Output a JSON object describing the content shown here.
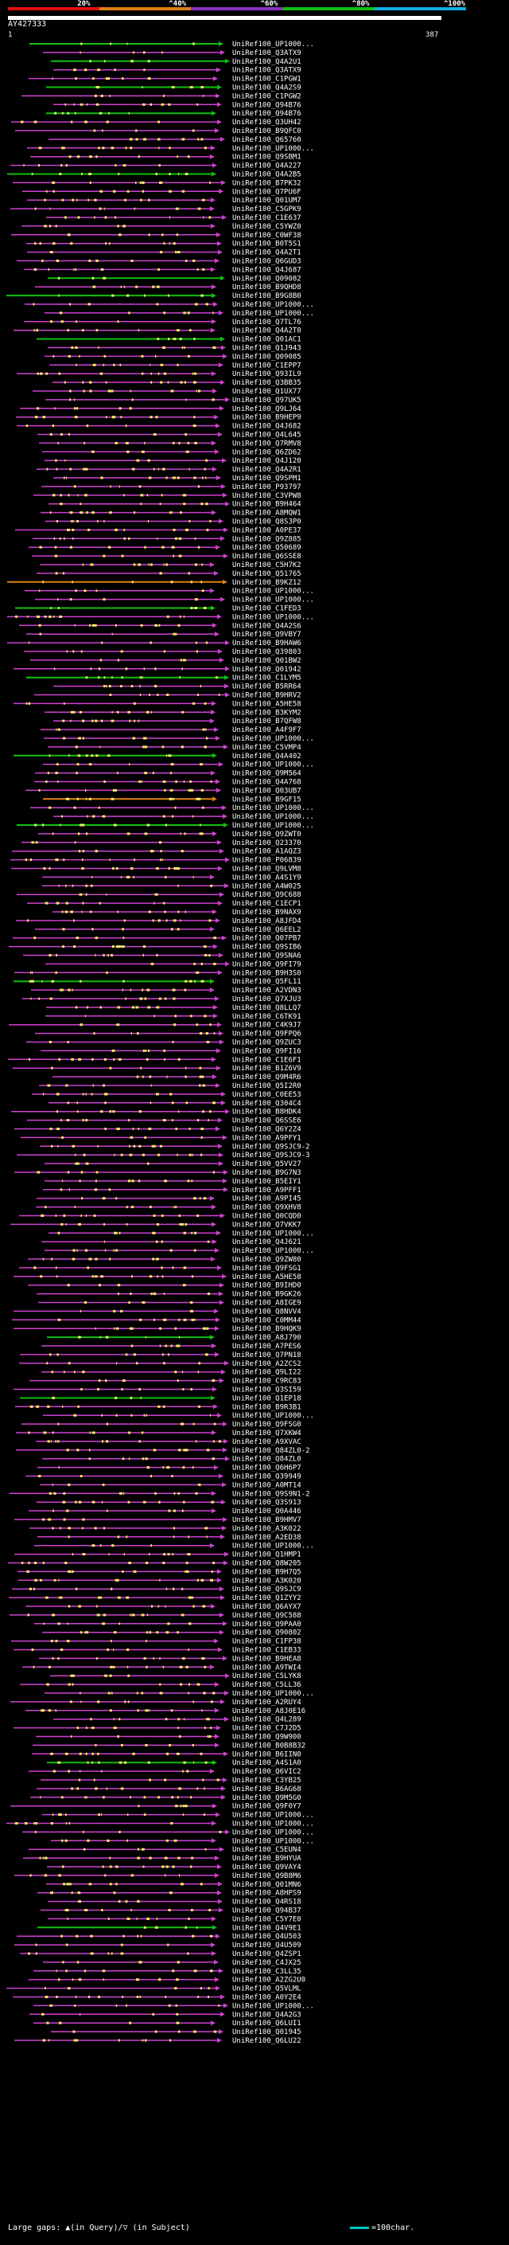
{
  "scale": {
    "labels": [
      "20%",
      "^40%",
      "^60%",
      "^80%",
      "^100%"
    ],
    "colors": [
      "#e01010",
      "#e08010",
      "#8830c0",
      "#10c010",
      "#10b0e0"
    ]
  },
  "query": {
    "id": "AY427333",
    "range_start": "1",
    "range_end": "387"
  },
  "colors": {
    "hit_magenta": "#d040d0",
    "hit_green": "#10c010",
    "hit_orange": "#e08010",
    "hsp_yellow": "#f0f060",
    "background": "#000000"
  },
  "hits": [
    {
      "label": "UniRef100_UP1000...",
      "color": "green"
    },
    {
      "label": "UniRef100_Q3ATX9",
      "color": "magenta"
    },
    {
      "label": "UniRef100_Q4A2U1",
      "color": "green"
    },
    {
      "label": "UniRef100_Q3ATX9",
      "color": "magenta"
    },
    {
      "label": "UniRef100_C1PGW1",
      "color": "magenta"
    },
    {
      "label": "UniRef100_Q4A2S9",
      "color": "green"
    },
    {
      "label": "UniRef100_C1PGW2",
      "color": "magenta"
    },
    {
      "label": "UniRef100_Q94B76",
      "color": "magenta"
    },
    {
      "label": "UniRef100_Q94B76",
      "color": "green"
    },
    {
      "label": "UniRef100_Q3UH42",
      "color": "magenta"
    },
    {
      "label": "UniRef100_B9QFC0",
      "color": "magenta"
    },
    {
      "label": "UniRef100_Q65760",
      "color": "magenta"
    },
    {
      "label": "UniRef100_UP1000...",
      "color": "magenta"
    },
    {
      "label": "UniRef100_Q9SBM1",
      "color": "magenta"
    },
    {
      "label": "UniRef100_Q4A227",
      "color": "magenta"
    },
    {
      "label": "UniRef100_Q4A2B5",
      "color": "green"
    },
    {
      "label": "UniRef100_B7PK32",
      "color": "magenta"
    },
    {
      "label": "UniRef100_Q7PU6F",
      "color": "magenta"
    },
    {
      "label": "UniRef100_Q01UM7",
      "color": "magenta"
    },
    {
      "label": "UniRef100_C5GPK9",
      "color": "magenta"
    },
    {
      "label": "UniRef100_C1E637",
      "color": "magenta"
    },
    {
      "label": "UniRef100_C5YWZ0",
      "color": "magenta"
    },
    {
      "label": "UniRef100_C0WF38",
      "color": "magenta"
    },
    {
      "label": "UniRef100_B0T5S1",
      "color": "magenta"
    },
    {
      "label": "UniRef100_Q4A2T1",
      "color": "magenta"
    },
    {
      "label": "UniRef100_Q6GUD3",
      "color": "magenta"
    },
    {
      "label": "UniRef100_Q4J687",
      "color": "magenta"
    },
    {
      "label": "UniRef100_Q09082",
      "color": "green"
    },
    {
      "label": "UniRef100_B9QHD8",
      "color": "magenta"
    },
    {
      "label": "UniRef100_B9G8B0",
      "color": "green"
    },
    {
      "label": "UniRef100_UP1000...",
      "color": "magenta"
    },
    {
      "label": "UniRef100_UP1000...",
      "color": "magenta"
    },
    {
      "label": "UniRef100_Q7TL76",
      "color": "magenta"
    },
    {
      "label": "UniRef100_Q4A2T0",
      "color": "magenta"
    },
    {
      "label": "UniRef100_Q01AC1",
      "color": "green"
    },
    {
      "label": "UniRef100_Q1J943",
      "color": "magenta"
    },
    {
      "label": "UniRef100_Q09085",
      "color": "magenta"
    },
    {
      "label": "UniRef100_C1EPP7",
      "color": "magenta"
    },
    {
      "label": "UniRef100_Q93IL9",
      "color": "magenta"
    },
    {
      "label": "UniRef100_Q3BB35",
      "color": "magenta"
    },
    {
      "label": "UniRef100_Q1UX77",
      "color": "magenta"
    },
    {
      "label": "UniRef100_Q97UK5",
      "color": "magenta"
    },
    {
      "label": "UniRef100_Q9LJ64",
      "color": "magenta"
    },
    {
      "label": "UniRef100_B9HEP9",
      "color": "magenta"
    },
    {
      "label": "UniRef100_Q4J682",
      "color": "magenta"
    },
    {
      "label": "UniRef100_Q4L645",
      "color": "magenta"
    },
    {
      "label": "UniRef100_Q7RMV8",
      "color": "magenta"
    },
    {
      "label": "UniRef100_Q6ZD62",
      "color": "magenta"
    },
    {
      "label": "UniRef100_Q4J120",
      "color": "magenta"
    },
    {
      "label": "UniRef100_Q4A2R1",
      "color": "magenta"
    },
    {
      "label": "UniRef100_Q9SPM1",
      "color": "magenta"
    },
    {
      "label": "UniRef100_P93797",
      "color": "magenta"
    },
    {
      "label": "UniRef100_C3VPW8",
      "color": "magenta"
    },
    {
      "label": "UniRef100_B9H464",
      "color": "magenta"
    },
    {
      "label": "UniRef100_A8MQW1",
      "color": "magenta"
    },
    {
      "label": "UniRef100_Q8S3P0",
      "color": "magenta"
    },
    {
      "label": "UniRef100_A0PE37",
      "color": "magenta"
    },
    {
      "label": "UniRef100_Q9Z885",
      "color": "magenta"
    },
    {
      "label": "UniRef100_Q50689",
      "color": "magenta"
    },
    {
      "label": "UniRef100_Q6SSE8",
      "color": "magenta"
    },
    {
      "label": "UniRef100_C5H7K2",
      "color": "magenta"
    },
    {
      "label": "UniRef100_Q51765",
      "color": "magenta"
    },
    {
      "label": "UniRef100_B9KZ12",
      "color": "orange"
    },
    {
      "label": "UniRef100_UP1000...",
      "color": "magenta"
    },
    {
      "label": "UniRef100_UP1000...",
      "color": "magenta"
    },
    {
      "label": "UniRef100_C1FED3",
      "color": "green"
    },
    {
      "label": "UniRef100_UP1000...",
      "color": "magenta"
    },
    {
      "label": "UniRef100_Q4A2S6",
      "color": "magenta"
    },
    {
      "label": "UniRef100_Q9VBY7",
      "color": "magenta"
    },
    {
      "label": "UniRef100_B9HAW6",
      "color": "magenta"
    },
    {
      "label": "UniRef100_Q39803",
      "color": "magenta"
    },
    {
      "label": "UniRef100_Q01BW2",
      "color": "magenta"
    },
    {
      "label": "UniRef100_Q01942",
      "color": "magenta"
    },
    {
      "label": "UniRef100_C1LYM5",
      "color": "green"
    },
    {
      "label": "UniRef100_B5RR64",
      "color": "magenta"
    },
    {
      "label": "UniRef100_B9HRV2",
      "color": "magenta"
    },
    {
      "label": "UniRef100_A5HE58",
      "color": "magenta"
    },
    {
      "label": "UniRef100_B3KYM2",
      "color": "magenta"
    },
    {
      "label": "UniRef100_B7QFW8",
      "color": "magenta"
    },
    {
      "label": "UniRef100_A4F9F7",
      "color": "magenta"
    },
    {
      "label": "UniRef100_UP1000...",
      "color": "magenta"
    },
    {
      "label": "UniRef100_C5VMP4",
      "color": "magenta"
    },
    {
      "label": "UniRef100_Q4A402",
      "color": "green"
    },
    {
      "label": "UniRef100_UP1000...",
      "color": "magenta"
    },
    {
      "label": "UniRef100_Q9M564",
      "color": "magenta"
    },
    {
      "label": "UniRef100_Q4A768",
      "color": "magenta"
    },
    {
      "label": "UniRef100_Q03UB7",
      "color": "magenta"
    },
    {
      "label": "UniRef100_B9GF15",
      "color": "orange"
    },
    {
      "label": "UniRef100_UP1000...",
      "color": "magenta"
    },
    {
      "label": "UniRef100_UP1000...",
      "color": "magenta"
    },
    {
      "label": "UniRef100_UP1000...",
      "color": "green"
    },
    {
      "label": "UniRef100_Q9ZWT0",
      "color": "magenta"
    },
    {
      "label": "UniRef100_Q23370",
      "color": "magenta"
    },
    {
      "label": "UniRef100_A1AQZ3",
      "color": "magenta"
    },
    {
      "label": "UniRef100_P06839",
      "color": "magenta"
    },
    {
      "label": "UniRef100_Q9LVM8",
      "color": "magenta"
    },
    {
      "label": "UniRef100_A4S1Y9",
      "color": "magenta"
    },
    {
      "label": "UniRef100_A4W025",
      "color": "magenta"
    },
    {
      "label": "UniRef100_Q9C688",
      "color": "magenta"
    },
    {
      "label": "UniRef100_C1ECP1",
      "color": "magenta"
    },
    {
      "label": "UniRef100_B9NAX9",
      "color": "magenta"
    },
    {
      "label": "UniRef100_A8JFD4",
      "color": "magenta"
    },
    {
      "label": "UniRef100_Q6EEL2",
      "color": "magenta"
    },
    {
      "label": "UniRef100_Q07PB7",
      "color": "magenta"
    },
    {
      "label": "UniRef100_Q9SIB6",
      "color": "magenta"
    },
    {
      "label": "UniRef100_Q9SNA6",
      "color": "magenta"
    },
    {
      "label": "UniRef100_Q9FI79",
      "color": "magenta"
    },
    {
      "label": "UniRef100_B9H3S0",
      "color": "magenta"
    },
    {
      "label": "UniRef100_Q5FL11",
      "color": "green"
    },
    {
      "label": "UniRef100_A2VDN3",
      "color": "magenta"
    },
    {
      "label": "UniRef100_Q7XJU3",
      "color": "magenta"
    },
    {
      "label": "UniRef100_Q8LLQ7",
      "color": "magenta"
    },
    {
      "label": "UniRef100_C6TK91",
      "color": "magenta"
    },
    {
      "label": "UniRef100_C4K9J7",
      "color": "magenta"
    },
    {
      "label": "UniRef100_Q9FPQ6",
      "color": "magenta"
    },
    {
      "label": "UniRef100_Q9ZUC3",
      "color": "magenta"
    },
    {
      "label": "UniRef100_Q9FI16",
      "color": "magenta"
    },
    {
      "label": "UniRef100_C1E6F1",
      "color": "magenta"
    },
    {
      "label": "UniRef100_B1Z6V9",
      "color": "magenta"
    },
    {
      "label": "UniRef100_Q9M4R6",
      "color": "magenta"
    },
    {
      "label": "UniRef100_Q5I2R0",
      "color": "magenta"
    },
    {
      "label": "UniRef100_C0EE53",
      "color": "magenta"
    },
    {
      "label": "UniRef100_Q304C4",
      "color": "magenta"
    },
    {
      "label": "UniRef100_B8HDK4",
      "color": "magenta"
    },
    {
      "label": "UniRef100_Q6SSE6",
      "color": "magenta"
    },
    {
      "label": "UniRef100_Q6Y2Z4",
      "color": "magenta"
    },
    {
      "label": "UniRef100_A9PFY1",
      "color": "magenta"
    },
    {
      "label": "UniRef100_Q9SJC9-2",
      "color": "magenta"
    },
    {
      "label": "UniRef100_Q9SJC9-3",
      "color": "magenta"
    },
    {
      "label": "UniRef100_Q5VV27",
      "color": "magenta"
    },
    {
      "label": "UniRef100_B9G7N3",
      "color": "magenta"
    },
    {
      "label": "UniRef100_B5EIY1",
      "color": "magenta"
    },
    {
      "label": "UniRef100_A9PFF1",
      "color": "magenta"
    },
    {
      "label": "UniRef100_A9PI45",
      "color": "magenta"
    },
    {
      "label": "UniRef100_Q9XHV8",
      "color": "magenta"
    },
    {
      "label": "UniRef100_Q0CQD0",
      "color": "magenta"
    },
    {
      "label": "UniRef100_Q7VKK7",
      "color": "magenta"
    },
    {
      "label": "UniRef100_UP1000...",
      "color": "magenta"
    },
    {
      "label": "UniRef100_Q4J621",
      "color": "magenta"
    },
    {
      "label": "UniRef100_UP1000...",
      "color": "magenta"
    },
    {
      "label": "UniRef100_Q9ZW80",
      "color": "magenta"
    },
    {
      "label": "UniRef100_Q9FSG1",
      "color": "magenta"
    },
    {
      "label": "UniRef100_A5HE58",
      "color": "magenta"
    },
    {
      "label": "UniRef100_B9IHD0",
      "color": "magenta"
    },
    {
      "label": "UniRef100_B9GK26",
      "color": "magenta"
    },
    {
      "label": "UniRef100_A8IGE9",
      "color": "magenta"
    },
    {
      "label": "UniRef100_Q8NVV4",
      "color": "magenta"
    },
    {
      "label": "UniRef100_C0MM44",
      "color": "magenta"
    },
    {
      "label": "UniRef100_B9HQK9",
      "color": "magenta"
    },
    {
      "label": "UniRef100_A8J790",
      "color": "green"
    },
    {
      "label": "UniRef100_A7PES6",
      "color": "magenta"
    },
    {
      "label": "UniRef100_Q7PN18",
      "color": "magenta"
    },
    {
      "label": "UniRef100_A2ZCS2",
      "color": "magenta"
    },
    {
      "label": "UniRef100_Q9LI22",
      "color": "magenta"
    },
    {
      "label": "UniRef100_C9RC83",
      "color": "magenta"
    },
    {
      "label": "UniRef100_Q3SI59",
      "color": "magenta"
    },
    {
      "label": "UniRef100_Q1EP18",
      "color": "green"
    },
    {
      "label": "UniRef100_B9R3B1",
      "color": "magenta"
    },
    {
      "label": "UniRef100_UP1000...",
      "color": "magenta"
    },
    {
      "label": "UniRef100_Q9FSG0",
      "color": "magenta"
    },
    {
      "label": "UniRef100_Q7XKW4",
      "color": "magenta"
    },
    {
      "label": "UniRef100_A9XVAC",
      "color": "magenta"
    },
    {
      "label": "UniRef100_Q84ZL0-2",
      "color": "magenta"
    },
    {
      "label": "UniRef100_Q84ZL0",
      "color": "magenta"
    },
    {
      "label": "UniRef100_Q6H6P7",
      "color": "magenta"
    },
    {
      "label": "UniRef100_Q39949",
      "color": "magenta"
    },
    {
      "label": "UniRef100_A0MT14",
      "color": "magenta"
    },
    {
      "label": "UniRef100_Q9S9N1-2",
      "color": "magenta"
    },
    {
      "label": "UniRef100_Q3S913",
      "color": "magenta"
    },
    {
      "label": "UniRef100_Q0A446",
      "color": "magenta"
    },
    {
      "label": "UniRef100_B9HMV7",
      "color": "magenta"
    },
    {
      "label": "UniRef100_A3K022",
      "color": "magenta"
    },
    {
      "label": "UniRef100_A2ED38",
      "color": "magenta"
    },
    {
      "label": "UniRef100_UP1000...",
      "color": "magenta"
    },
    {
      "label": "UniRef100_Q1HMP1",
      "color": "magenta"
    },
    {
      "label": "UniRef100_Q8W205",
      "color": "magenta"
    },
    {
      "label": "UniRef100_B9H7Q5",
      "color": "magenta"
    },
    {
      "label": "UniRef100_A3K020",
      "color": "magenta"
    },
    {
      "label": "UniRef100_Q9SJC9",
      "color": "magenta"
    },
    {
      "label": "UniRef100_Q1ZYY2",
      "color": "magenta"
    },
    {
      "label": "UniRef100_Q6AYX7",
      "color": "magenta"
    },
    {
      "label": "UniRef100_Q9C588",
      "color": "magenta"
    },
    {
      "label": "UniRef100_Q9PAA0",
      "color": "magenta"
    },
    {
      "label": "UniRef100_Q90802",
      "color": "magenta"
    },
    {
      "label": "UniRef100_C1FP38",
      "color": "magenta"
    },
    {
      "label": "UniRef100_C1EB33",
      "color": "magenta"
    },
    {
      "label": "UniRef100_B9HEA8",
      "color": "magenta"
    },
    {
      "label": "UniRef100_A9TWI4",
      "color": "magenta"
    },
    {
      "label": "UniRef100_C5LYK8",
      "color": "magenta"
    },
    {
      "label": "UniRef100_C5LL36",
      "color": "magenta"
    },
    {
      "label": "UniRef100_UP1000...",
      "color": "magenta"
    },
    {
      "label": "UniRef100_A2RUY4",
      "color": "magenta"
    },
    {
      "label": "UniRef100_A8J0E16",
      "color": "magenta"
    },
    {
      "label": "UniRef100_Q4L289",
      "color": "magenta"
    },
    {
      "label": "UniRef100_C7J2D5",
      "color": "magenta"
    },
    {
      "label": "UniRef100_Q9W900",
      "color": "magenta"
    },
    {
      "label": "UniRef100_B0B8B32",
      "color": "magenta"
    },
    {
      "label": "UniRef100_B6IIN0",
      "color": "magenta"
    },
    {
      "label": "UniRef100_A4S1A0",
      "color": "green"
    },
    {
      "label": "UniRef100_Q6VIC2",
      "color": "magenta"
    },
    {
      "label": "UniRef100_C3YB25",
      "color": "magenta"
    },
    {
      "label": "UniRef100_B6AG68",
      "color": "magenta"
    },
    {
      "label": "UniRef100_Q9M5G0",
      "color": "magenta"
    },
    {
      "label": "UniRef100_Q9F0Y7",
      "color": "magenta"
    },
    {
      "label": "UniRef100_UP1000...",
      "color": "magenta"
    },
    {
      "label": "UniRef100_UP1000...",
      "color": "magenta"
    },
    {
      "label": "UniRef100_UP1000...",
      "color": "magenta"
    },
    {
      "label": "UniRef100_UP1000...",
      "color": "magenta"
    },
    {
      "label": "UniRef100_C5EUN4",
      "color": "magenta"
    },
    {
      "label": "UniRef100_B9HYUA",
      "color": "magenta"
    },
    {
      "label": "UniRef100_Q9VAY4",
      "color": "magenta"
    },
    {
      "label": "UniRef100_Q9B8M6",
      "color": "magenta"
    },
    {
      "label": "UniRef100_Q01MN6",
      "color": "magenta"
    },
    {
      "label": "UniRef100_A8HPS9",
      "color": "magenta"
    },
    {
      "label": "UniRef100_Q4RS18",
      "color": "magenta"
    },
    {
      "label": "UniRef100_Q94B37",
      "color": "magenta"
    },
    {
      "label": "UniRef100_C5Y7E0",
      "color": "magenta"
    },
    {
      "label": "UniRef100_Q4V9E1",
      "color": "green"
    },
    {
      "label": "UniRef100_Q4U503",
      "color": "magenta"
    },
    {
      "label": "UniRef100_Q4U509",
      "color": "magenta"
    },
    {
      "label": "UniRef100_Q4ZSP1",
      "color": "magenta"
    },
    {
      "label": "UniRef100_C4JX25",
      "color": "magenta"
    },
    {
      "label": "UniRef100_C3LL35",
      "color": "magenta"
    },
    {
      "label": "UniRef100_A2ZG2U0",
      "color": "magenta"
    },
    {
      "label": "UniRef100_Q5VLML",
      "color": "magenta"
    },
    {
      "label": "UniRef100_A0Y2E4",
      "color": "magenta"
    },
    {
      "label": "UniRef100_UP1000...",
      "color": "magenta"
    },
    {
      "label": "UniRef100_Q4A2G3",
      "color": "magenta"
    },
    {
      "label": "UniRef100_Q6LUI1",
      "color": "magenta"
    },
    {
      "label": "UniRef100_Q01945",
      "color": "magenta"
    },
    {
      "label": "UniRef100_Q6LU22",
      "color": "magenta"
    }
  ],
  "footer": {
    "large_gaps": "Large gaps: ▲(in Query)/▽ (in Subject)",
    "legend": "=100char."
  }
}
